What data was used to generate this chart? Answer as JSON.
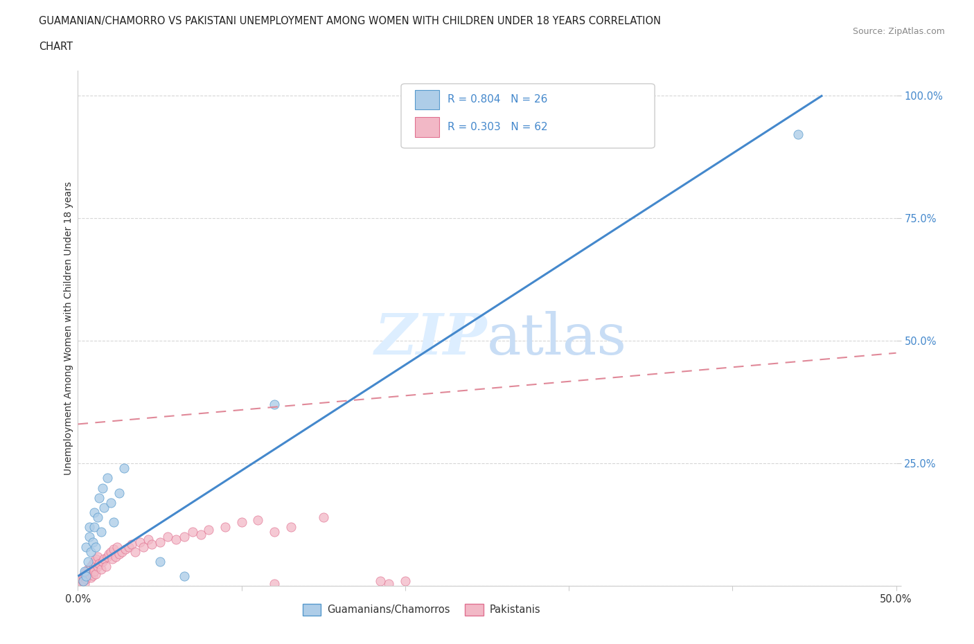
{
  "title_line1": "GUAMANIAN/CHAMORRO VS PAKISTANI UNEMPLOYMENT AMONG WOMEN WITH CHILDREN UNDER 18 YEARS CORRELATION",
  "title_line2": "CHART",
  "source_text": "Source: ZipAtlas.com",
  "ylabel": "Unemployment Among Women with Children Under 18 years",
  "xlim": [
    0.0,
    0.5
  ],
  "ylim": [
    0.0,
    1.05
  ],
  "color_guam": "#aecde8",
  "color_guam_edge": "#5599cc",
  "color_pak": "#f2b8c6",
  "color_pak_edge": "#e07090",
  "color_guam_line": "#4488cc",
  "color_pak_line": "#e08898",
  "watermark_color": "#ddeeff",
  "guam_line_x0": 0.0,
  "guam_line_y0": 0.02,
  "guam_line_x1": 0.455,
  "guam_line_y1": 1.0,
  "pak_line_x0": 0.0,
  "pak_line_y0": 0.33,
  "pak_line_x1": 0.5,
  "pak_line_y1": 0.475,
  "legend_items": [
    {
      "label": "R = 0.804   N = 26",
      "color": "#aecde8",
      "edge": "#5599cc"
    },
    {
      "label": "R = 0.303   N = 62",
      "color": "#f2b8c6",
      "edge": "#e07090"
    }
  ],
  "bottom_legend_items": [
    {
      "label": "Guamanians/Chamorros",
      "color": "#aecde8",
      "edge": "#5599cc"
    },
    {
      "label": "Pakistanis",
      "color": "#f2b8c6",
      "edge": "#e07090"
    }
  ],
  "guam_scatter_x": [
    0.003,
    0.004,
    0.005,
    0.005,
    0.006,
    0.007,
    0.007,
    0.008,
    0.009,
    0.01,
    0.01,
    0.011,
    0.012,
    0.013,
    0.014,
    0.015,
    0.016,
    0.018,
    0.02,
    0.022,
    0.025,
    0.028,
    0.05,
    0.065,
    0.12,
    0.44
  ],
  "guam_scatter_y": [
    0.01,
    0.03,
    0.02,
    0.08,
    0.05,
    0.1,
    0.12,
    0.07,
    0.09,
    0.12,
    0.15,
    0.08,
    0.14,
    0.18,
    0.11,
    0.2,
    0.16,
    0.22,
    0.17,
    0.13,
    0.19,
    0.24,
    0.05,
    0.02,
    0.37,
    0.92
  ],
  "pak_scatter_x": [
    0.001,
    0.001,
    0.002,
    0.002,
    0.003,
    0.003,
    0.004,
    0.004,
    0.005,
    0.005,
    0.006,
    0.006,
    0.007,
    0.008,
    0.008,
    0.009,
    0.009,
    0.01,
    0.01,
    0.011,
    0.011,
    0.012,
    0.012,
    0.013,
    0.014,
    0.015,
    0.016,
    0.017,
    0.018,
    0.019,
    0.02,
    0.021,
    0.022,
    0.023,
    0.024,
    0.025,
    0.027,
    0.029,
    0.031,
    0.033,
    0.035,
    0.038,
    0.04,
    0.043,
    0.045,
    0.05,
    0.055,
    0.06,
    0.065,
    0.07,
    0.075,
    0.08,
    0.09,
    0.1,
    0.11,
    0.12,
    0.13,
    0.15,
    0.19,
    0.2,
    0.12,
    0.185
  ],
  "pak_scatter_y": [
    0.005,
    0.01,
    0.008,
    0.015,
    0.01,
    0.02,
    0.005,
    0.025,
    0.015,
    0.03,
    0.02,
    0.035,
    0.025,
    0.018,
    0.04,
    0.022,
    0.045,
    0.03,
    0.05,
    0.025,
    0.055,
    0.04,
    0.06,
    0.045,
    0.035,
    0.05,
    0.055,
    0.04,
    0.06,
    0.065,
    0.07,
    0.055,
    0.075,
    0.06,
    0.08,
    0.065,
    0.07,
    0.075,
    0.08,
    0.085,
    0.07,
    0.09,
    0.08,
    0.095,
    0.085,
    0.09,
    0.1,
    0.095,
    0.1,
    0.11,
    0.105,
    0.115,
    0.12,
    0.13,
    0.135,
    0.11,
    0.12,
    0.14,
    0.005,
    0.01,
    0.005,
    0.01
  ]
}
